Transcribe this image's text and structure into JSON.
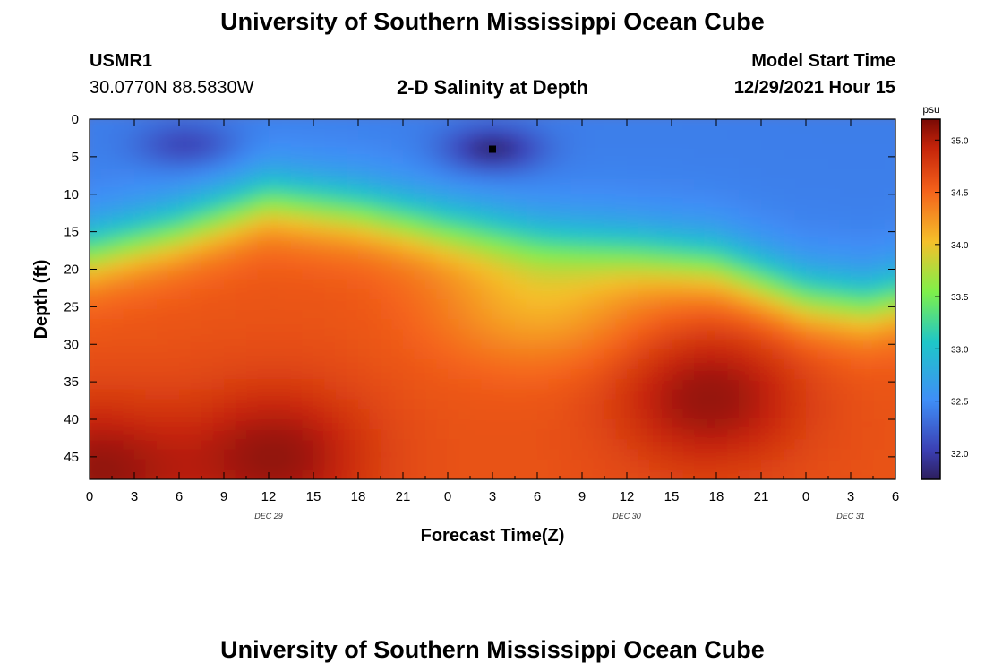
{
  "page": {
    "title": "University of Southern Mississippi Ocean Cube",
    "footer_title": "University of Southern Mississippi Ocean Cube",
    "station": "USMR1",
    "coords": "30.0770N  88.5830W",
    "model_start_label": "Model Start Time",
    "model_start_value": "12/29/2021 Hour 15"
  },
  "chart_data": {
    "type": "heatmap",
    "title": "2-D Salinity at Depth",
    "xlabel": "Forecast Time(Z)",
    "ylabel": "Depth (ft)",
    "x_tick_labels": [
      "0",
      "3",
      "6",
      "9",
      "12",
      "15",
      "18",
      "21",
      "0",
      "3",
      "6",
      "9",
      "12",
      "15",
      "18",
      "21",
      "0",
      "3",
      "6"
    ],
    "x_range_hours": [
      0,
      54
    ],
    "day_labels": [
      {
        "label": "DEC 29",
        "hour": 12
      },
      {
        "label": "DEC 30",
        "hour": 36
      },
      {
        "label": "DEC 31",
        "hour": 51
      }
    ],
    "y_ticks": [
      0,
      5,
      10,
      15,
      20,
      25,
      30,
      35,
      40,
      45
    ],
    "y_range": [
      0,
      48
    ],
    "y_reversed": true,
    "colorbar": {
      "unit": "psu",
      "range": [
        31.75,
        35.2
      ],
      "ticks": [
        32.0,
        32.5,
        33.0,
        33.5,
        34.0,
        34.5,
        35.0
      ],
      "tick_labels": [
        "32.0",
        "32.5",
        "33.0",
        "33.5",
        "34.0",
        "34.5",
        "35.0"
      ]
    },
    "surface_salinity_psu": 32.4,
    "deep_salinity_psu": 34.6,
    "halocline_depth_ft": [
      {
        "hour": 0,
        "depth": 18
      },
      {
        "hour": 6,
        "depth": 15
      },
      {
        "hour": 12,
        "depth": 11
      },
      {
        "hour": 18,
        "depth": 12.5
      },
      {
        "hour": 24,
        "depth": 15
      },
      {
        "hour": 30,
        "depth": 17
      },
      {
        "hour": 36,
        "depth": 18
      },
      {
        "hour": 42,
        "depth": 19.5
      },
      {
        "hour": 48,
        "depth": 24
      },
      {
        "hour": 52,
        "depth": 25
      },
      {
        "hour": 54,
        "depth": 24
      }
    ],
    "low_salinity_cores": [
      {
        "hour": 6.5,
        "depth": 3.5,
        "min_psu": 32.0
      },
      {
        "hour": 27,
        "depth": 4,
        "min_psu": 31.8
      }
    ],
    "high_salinity_cores": [
      {
        "hour": 12.5,
        "depth": 45,
        "max_psu": 35.1
      },
      {
        "hour": 41.5,
        "depth": 37,
        "max_psu": 35.1
      },
      {
        "hour": 0.5,
        "depth": 47,
        "max_psu": 35.1
      }
    ],
    "marker": {
      "hour": 27,
      "depth": 4
    }
  }
}
